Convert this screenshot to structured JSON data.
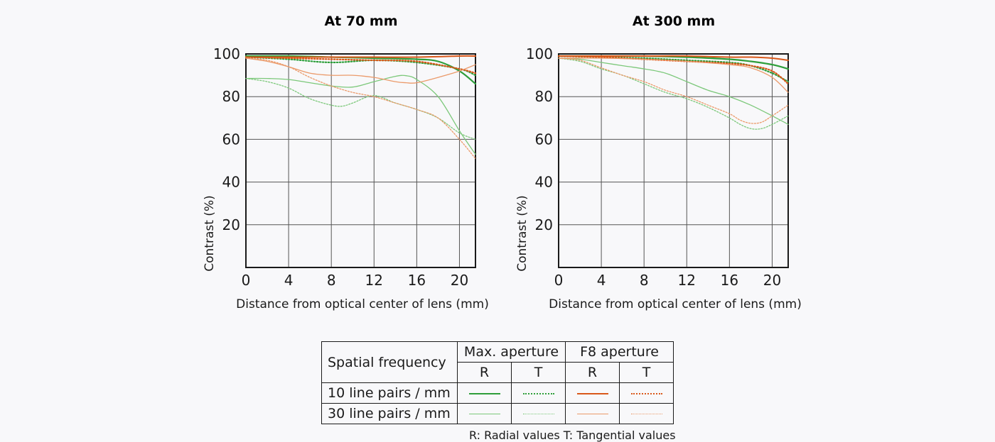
{
  "colors": {
    "green": "#2e9e3a",
    "green_light": "#7cc87a",
    "orange": "#d9581a",
    "orange_light": "#eb9a6a",
    "grid": "#555555"
  },
  "chart_data": [
    {
      "type": "line",
      "title": "At 70 mm",
      "xlabel": "Distance from optical center of lens (mm)",
      "ylabel": "Contrast (%)",
      "xlim": [
        0,
        21.5
      ],
      "ylim": [
        0,
        100
      ],
      "xticks": [
        0,
        4,
        8,
        12,
        16,
        20
      ],
      "yticks": [
        20,
        40,
        60,
        80,
        100
      ],
      "series": [
        {
          "name": "10 lp/mm Max R",
          "style": "green-solid",
          "x": [
            0,
            4,
            8,
            12,
            16,
            18,
            20,
            21.5
          ],
          "y": [
            99,
            99,
            98.5,
            98,
            97.5,
            96.5,
            92,
            86
          ]
        },
        {
          "name": "10 lp/mm Max T",
          "style": "green-dotted",
          "x": [
            0,
            4,
            8,
            12,
            16,
            20,
            21.5
          ],
          "y": [
            98.5,
            97.5,
            96,
            97,
            96,
            93,
            90
          ]
        },
        {
          "name": "10 lp/mm F8 R",
          "style": "orange-solid",
          "x": [
            0,
            4,
            8,
            12,
            16,
            20,
            21.5
          ],
          "y": [
            98.5,
            98.5,
            98.5,
            98.5,
            98.5,
            99,
            99
          ]
        },
        {
          "name": "10 lp/mm F8 T",
          "style": "orange-dotted",
          "x": [
            0,
            4,
            8,
            12,
            16,
            20,
            21.5
          ],
          "y": [
            98.5,
            98,
            97.5,
            97,
            96.5,
            93,
            91
          ]
        },
        {
          "name": "30 lp/mm Max R",
          "style": "green-thin",
          "x": [
            0,
            2,
            4,
            6,
            8,
            10,
            12,
            14,
            15,
            16,
            18,
            20,
            21.5
          ],
          "y": [
            88.5,
            88.5,
            88,
            86.5,
            85,
            84.5,
            87,
            89.5,
            89.8,
            88,
            80,
            64,
            53
          ]
        },
        {
          "name": "30 lp/mm Max T",
          "style": "green-thin-dotted",
          "x": [
            0,
            2,
            4,
            6,
            8,
            9,
            10,
            12,
            14,
            16,
            18,
            20,
            21.5
          ],
          "y": [
            88.5,
            87,
            84,
            79,
            76,
            75.5,
            77,
            80.5,
            77,
            74,
            70,
            63,
            60
          ]
        },
        {
          "name": "30 lp/mm F8 R",
          "style": "orange-thin",
          "x": [
            0,
            2,
            4,
            6,
            8,
            10,
            12,
            14,
            15,
            16,
            18,
            20,
            21.5
          ],
          "y": [
            98,
            96.5,
            94,
            91,
            90,
            90,
            89,
            87,
            86.5,
            86.5,
            89,
            92,
            95
          ]
        },
        {
          "name": "30 lp/mm F8 T",
          "style": "orange-thin-dotted",
          "x": [
            0,
            2,
            4,
            6,
            8,
            10,
            12,
            14,
            16,
            18,
            20,
            21.5
          ],
          "y": [
            98,
            97,
            94,
            89,
            85,
            82,
            80,
            77,
            74,
            70,
            60,
            51
          ]
        }
      ]
    },
    {
      "type": "line",
      "title": "At 300 mm",
      "xlabel": "Distance from optical center of lens (mm)",
      "ylabel": "Contrast (%)",
      "xlim": [
        0,
        21.5
      ],
      "ylim": [
        0,
        100
      ],
      "xticks": [
        0,
        4,
        8,
        12,
        16,
        20
      ],
      "yticks": [
        20,
        40,
        60,
        80,
        100
      ],
      "series": [
        {
          "name": "10 lp/mm Max R",
          "style": "green-solid",
          "x": [
            0,
            4,
            8,
            12,
            16,
            18,
            20,
            21.5
          ],
          "y": [
            99,
            99,
            99,
            98.5,
            97.5,
            96.5,
            95,
            93
          ]
        },
        {
          "name": "10 lp/mm Max T",
          "style": "green-dotted",
          "x": [
            0,
            4,
            8,
            12,
            16,
            18,
            20,
            21.5
          ],
          "y": [
            99,
            98.5,
            98,
            97,
            96,
            94.5,
            91,
            87
          ]
        },
        {
          "name": "10 lp/mm F8 R",
          "style": "orange-solid",
          "x": [
            0,
            4,
            8,
            12,
            16,
            18,
            20,
            21.5
          ],
          "y": [
            99,
            99,
            99,
            99,
            98.5,
            98.5,
            98,
            97
          ]
        },
        {
          "name": "10 lp/mm F8 T",
          "style": "orange-dotted",
          "x": [
            0,
            4,
            8,
            12,
            16,
            18,
            20,
            21.5
          ],
          "y": [
            99,
            98.5,
            97.5,
            96.5,
            95.5,
            94.5,
            92,
            86
          ]
        },
        {
          "name": "30 lp/mm Max R",
          "style": "green-thin",
          "x": [
            0,
            2,
            4,
            6,
            8,
            10,
            12,
            14,
            16,
            18,
            20,
            21.5
          ],
          "y": [
            98,
            97.5,
            96,
            94.5,
            93,
            91,
            87,
            83,
            80,
            76,
            71,
            67
          ]
        },
        {
          "name": "30 lp/mm Max T",
          "style": "green-thin-dotted",
          "x": [
            0,
            2,
            4,
            6,
            8,
            10,
            12,
            14,
            16,
            17,
            18,
            19,
            20,
            21.5
          ],
          "y": [
            98,
            96.5,
            93,
            90,
            86,
            82,
            79,
            75,
            70,
            67,
            65,
            65,
            67,
            71
          ]
        },
        {
          "name": "30 lp/mm F8 R",
          "style": "orange-thin",
          "x": [
            0,
            4,
            8,
            12,
            16,
            18,
            20,
            21.5
          ],
          "y": [
            98,
            98,
            97.5,
            96.5,
            95,
            93.5,
            89,
            82
          ]
        },
        {
          "name": "30 lp/mm F8 T",
          "style": "orange-thin-dotted",
          "x": [
            0,
            2,
            4,
            6,
            8,
            10,
            12,
            14,
            16,
            17,
            18,
            19,
            20,
            21.5
          ],
          "y": [
            98,
            97,
            93.5,
            90,
            87,
            83,
            80,
            76,
            72,
            69,
            67.5,
            68,
            71,
            76
          ]
        }
      ]
    }
  ],
  "legend": {
    "spatial_header": "Spatial frequency",
    "max_aperture": "Max. aperture",
    "f8_aperture": "F8 aperture",
    "r_label": "R",
    "t_label": "T",
    "row_10": "10 line pairs / mm",
    "row_30": "30 line pairs / mm"
  },
  "footnote": "R: Radial values  T: Tangential values"
}
